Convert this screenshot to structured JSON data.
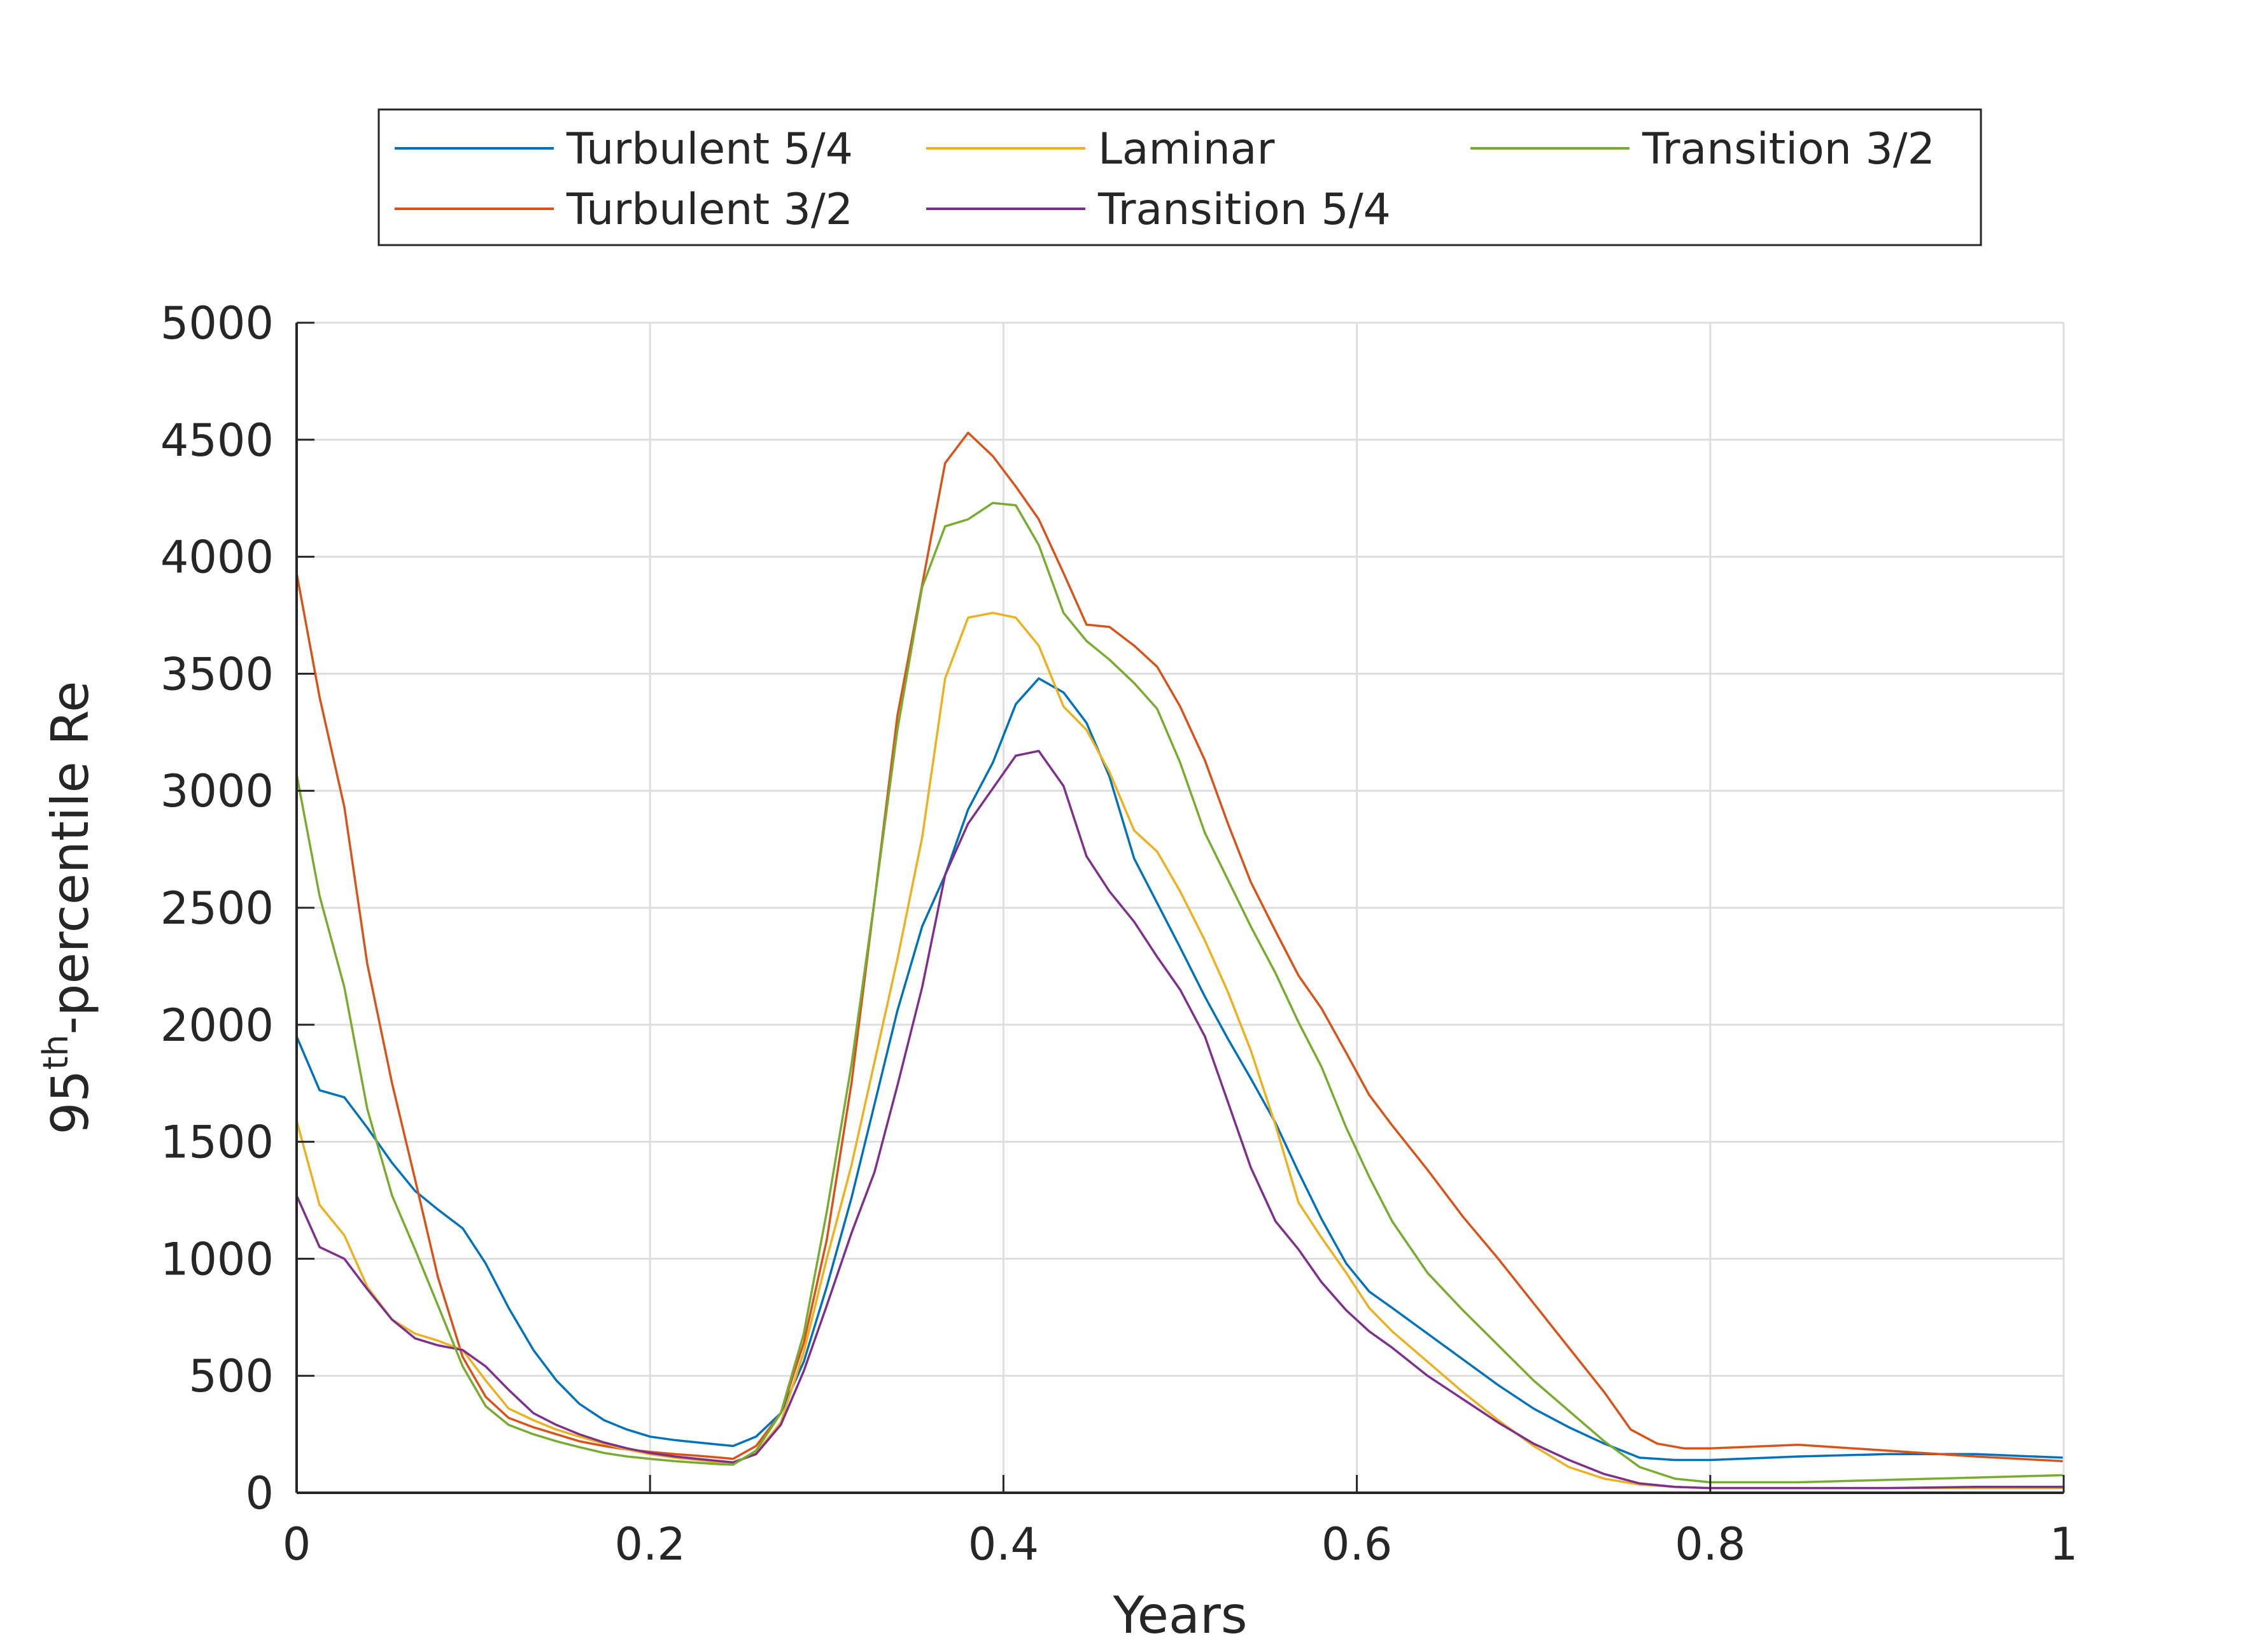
{
  "chart_data": {
    "type": "line",
    "xlabel": "Years",
    "ylabel": {
      "base": "95",
      "sup": "th",
      "rest": "-percentile Re"
    },
    "xlim": [
      0,
      1
    ],
    "ylim": [
      0,
      5000
    ],
    "xticks": [
      0,
      0.2,
      0.4,
      0.6,
      0.8,
      1
    ],
    "xtick_labels": [
      "0",
      "0.2",
      "0.4",
      "0.6",
      "0.8",
      "1"
    ],
    "yticks": [
      0,
      500,
      1000,
      1500,
      2000,
      2500,
      3000,
      3500,
      4000,
      4500,
      5000
    ],
    "ytick_labels": [
      "0",
      "500",
      "1000",
      "1500",
      "2000",
      "2500",
      "3000",
      "3500",
      "4000",
      "4500",
      "5000"
    ],
    "grid": true,
    "legend_position": "top-outside",
    "series": [
      {
        "name": "Turbulent 5/4",
        "color": "#0072BD",
        "x": [
          0,
          0.013,
          0.027,
          0.04,
          0.054,
          0.067,
          0.08,
          0.094,
          0.107,
          0.12,
          0.134,
          0.147,
          0.16,
          0.174,
          0.187,
          0.2,
          0.214,
          0.227,
          0.24,
          0.247,
          0.26,
          0.274,
          0.287,
          0.3,
          0.314,
          0.327,
          0.34,
          0.354,
          0.367,
          0.38,
          0.394,
          0.407,
          0.42,
          0.434,
          0.447,
          0.46,
          0.474,
          0.487,
          0.5,
          0.514,
          0.527,
          0.54,
          0.554,
          0.567,
          0.58,
          0.594,
          0.607,
          0.62,
          0.64,
          0.66,
          0.68,
          0.7,
          0.72,
          0.74,
          0.76,
          0.78,
          0.8,
          0.85,
          0.9,
          0.95,
          1
        ],
        "values": [
          1950,
          1720,
          1690,
          1560,
          1410,
          1290,
          1210,
          1130,
          980,
          790,
          610,
          480,
          380,
          310,
          270,
          240,
          225,
          215,
          205,
          200,
          240,
          340,
          560,
          880,
          1260,
          1660,
          2060,
          2420,
          2640,
          2920,
          3120,
          3370,
          3480,
          3420,
          3290,
          3060,
          2710,
          2520,
          2330,
          2120,
          1940,
          1770,
          1580,
          1370,
          1170,
          980,
          860,
          790,
          680,
          570,
          460,
          360,
          280,
          210,
          150,
          140,
          140,
          155,
          165,
          165,
          150
        ]
      },
      {
        "name": "Turbulent 3/2",
        "color": "#D95319",
        "x": [
          0,
          0.013,
          0.027,
          0.04,
          0.054,
          0.067,
          0.08,
          0.094,
          0.107,
          0.12,
          0.134,
          0.147,
          0.16,
          0.174,
          0.187,
          0.2,
          0.214,
          0.227,
          0.24,
          0.247,
          0.26,
          0.274,
          0.287,
          0.3,
          0.314,
          0.327,
          0.34,
          0.354,
          0.367,
          0.38,
          0.394,
          0.407,
          0.42,
          0.434,
          0.447,
          0.46,
          0.474,
          0.487,
          0.5,
          0.514,
          0.527,
          0.54,
          0.554,
          0.567,
          0.58,
          0.594,
          0.607,
          0.62,
          0.64,
          0.66,
          0.68,
          0.7,
          0.72,
          0.74,
          0.755,
          0.77,
          0.785,
          0.8,
          0.85,
          0.9,
          0.95,
          1
        ],
        "values": [
          3930,
          3400,
          2930,
          2260,
          1750,
          1340,
          920,
          580,
          410,
          320,
          280,
          250,
          220,
          200,
          185,
          175,
          165,
          158,
          150,
          145,
          200,
          340,
          640,
          1080,
          1750,
          2530,
          3320,
          3880,
          4400,
          4530,
          4430,
          4300,
          4160,
          3930,
          3710,
          3700,
          3620,
          3530,
          3360,
          3130,
          2860,
          2610,
          2400,
          2210,
          2070,
          1880,
          1700,
          1570,
          1380,
          1180,
          1000,
          810,
          620,
          430,
          270,
          210,
          190,
          190,
          205,
          180,
          155,
          135
        ]
      },
      {
        "name": "Laminar",
        "color": "#EDB120",
        "x": [
          0,
          0.013,
          0.027,
          0.04,
          0.054,
          0.067,
          0.08,
          0.094,
          0.107,
          0.12,
          0.134,
          0.147,
          0.16,
          0.174,
          0.187,
          0.2,
          0.214,
          0.227,
          0.24,
          0.247,
          0.26,
          0.274,
          0.287,
          0.3,
          0.314,
          0.327,
          0.34,
          0.354,
          0.367,
          0.38,
          0.394,
          0.407,
          0.42,
          0.434,
          0.447,
          0.46,
          0.474,
          0.487,
          0.5,
          0.514,
          0.527,
          0.54,
          0.554,
          0.567,
          0.58,
          0.594,
          0.607,
          0.62,
          0.64,
          0.66,
          0.68,
          0.7,
          0.72,
          0.74,
          0.76,
          0.78,
          0.8,
          0.85,
          0.9,
          0.95,
          1
        ],
        "values": [
          1590,
          1230,
          1100,
          880,
          740,
          680,
          650,
          610,
          480,
          360,
          310,
          270,
          240,
          210,
          185,
          165,
          150,
          140,
          130,
          125,
          170,
          300,
          600,
          1000,
          1400,
          1840,
          2280,
          2800,
          3480,
          3740,
          3760,
          3740,
          3620,
          3360,
          3260,
          3080,
          2830,
          2740,
          2570,
          2360,
          2140,
          1890,
          1570,
          1240,
          1090,
          940,
          790,
          690,
          560,
          430,
          310,
          200,
          110,
          60,
          35,
          25,
          20,
          20,
          20,
          20,
          20
        ]
      },
      {
        "name": "Transition 5/4",
        "color": "#7E2F8E",
        "x": [
          0,
          0.013,
          0.027,
          0.04,
          0.054,
          0.067,
          0.08,
          0.094,
          0.107,
          0.12,
          0.134,
          0.147,
          0.16,
          0.174,
          0.187,
          0.2,
          0.214,
          0.227,
          0.24,
          0.247,
          0.26,
          0.274,
          0.287,
          0.3,
          0.314,
          0.327,
          0.34,
          0.354,
          0.367,
          0.38,
          0.394,
          0.407,
          0.42,
          0.434,
          0.447,
          0.46,
          0.474,
          0.487,
          0.5,
          0.514,
          0.527,
          0.54,
          0.554,
          0.567,
          0.58,
          0.594,
          0.607,
          0.62,
          0.64,
          0.66,
          0.68,
          0.7,
          0.72,
          0.74,
          0.76,
          0.78,
          0.8,
          0.85,
          0.9,
          0.95,
          1
        ],
        "values": [
          1270,
          1050,
          1000,
          870,
          740,
          660,
          630,
          610,
          540,
          440,
          340,
          290,
          250,
          215,
          190,
          170,
          155,
          145,
          135,
          130,
          165,
          290,
          520,
          800,
          1110,
          1370,
          1740,
          2160,
          2640,
          2860,
          3010,
          3150,
          3170,
          3020,
          2720,
          2570,
          2440,
          2290,
          2150,
          1950,
          1670,
          1390,
          1160,
          1040,
          900,
          780,
          690,
          620,
          500,
          400,
          300,
          210,
          140,
          80,
          40,
          25,
          20,
          20,
          20,
          25,
          25
        ]
      },
      {
        "name": "Transition 3/2",
        "color": "#77AC30",
        "x": [
          0,
          0.013,
          0.027,
          0.04,
          0.054,
          0.067,
          0.08,
          0.094,
          0.107,
          0.12,
          0.134,
          0.147,
          0.16,
          0.174,
          0.187,
          0.2,
          0.214,
          0.227,
          0.24,
          0.247,
          0.26,
          0.274,
          0.287,
          0.3,
          0.314,
          0.327,
          0.34,
          0.354,
          0.367,
          0.38,
          0.394,
          0.407,
          0.42,
          0.434,
          0.447,
          0.46,
          0.474,
          0.487,
          0.5,
          0.514,
          0.527,
          0.54,
          0.554,
          0.567,
          0.58,
          0.594,
          0.607,
          0.62,
          0.64,
          0.66,
          0.68,
          0.7,
          0.72,
          0.74,
          0.76,
          0.78,
          0.8,
          0.85,
          0.9,
          0.95,
          1
        ],
        "values": [
          3070,
          2550,
          2160,
          1640,
          1270,
          1040,
          800,
          540,
          370,
          290,
          250,
          220,
          195,
          170,
          155,
          145,
          135,
          128,
          122,
          120,
          180,
          340,
          680,
          1200,
          1830,
          2530,
          3260,
          3870,
          4130,
          4160,
          4230,
          4220,
          4050,
          3760,
          3640,
          3560,
          3460,
          3350,
          3120,
          2820,
          2620,
          2420,
          2220,
          2010,
          1820,
          1560,
          1350,
          1160,
          940,
          780,
          630,
          480,
          350,
          220,
          110,
          60,
          45,
          45,
          55,
          65,
          75
        ]
      }
    ]
  }
}
